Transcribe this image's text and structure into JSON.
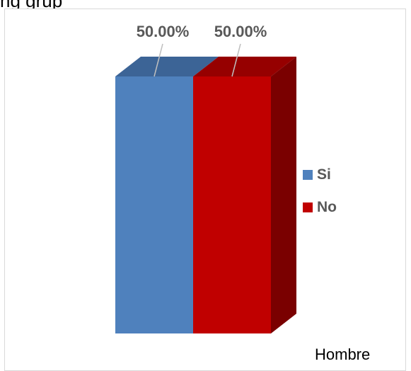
{
  "top_text": "ng grup",
  "chart_data": {
    "type": "bar",
    "stacked": "100%",
    "three_d": true,
    "categories": [
      "Hombre"
    ],
    "series": [
      {
        "name": "Si",
        "values": [
          50.0
        ],
        "label": "50.00%",
        "color": "#4f81bd",
        "top_color": "#3c6496"
      },
      {
        "name": "No",
        "values": [
          50.0
        ],
        "label": "50.00%",
        "color": "#c00000",
        "side_color": "#7a0000",
        "top_color": "#960000"
      }
    ],
    "ylim": [
      0,
      100
    ],
    "legend_position": "right",
    "grid": false
  }
}
